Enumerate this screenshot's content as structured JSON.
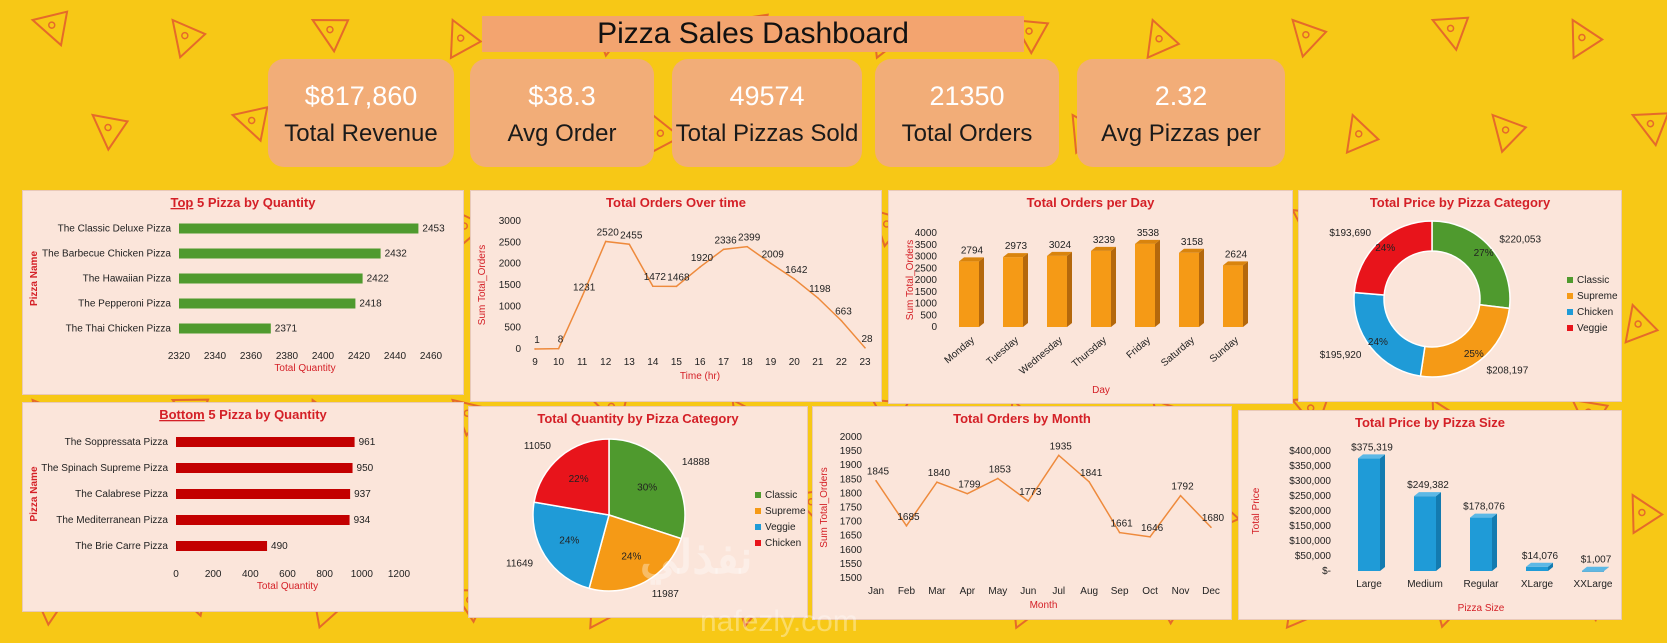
{
  "header": {
    "title": "Pizza Sales Dashboard"
  },
  "kpis": [
    {
      "value": "$817,860",
      "label": "Total Revenue"
    },
    {
      "value": "$38.3",
      "label": "Avg Order"
    },
    {
      "value": "49574",
      "label": "Total Pizzas Sold"
    },
    {
      "value": "21350",
      "label": "Total Orders"
    },
    {
      "value": "2.32",
      "label": "Avg Pizzas per"
    }
  ],
  "watermark": {
    "line1": "نفذلي",
    "line2": "nafezly.com"
  },
  "colors": {
    "green": "#4f9a2e",
    "red": "#c30000",
    "orange": "#f59a16",
    "blue": "#1f9bd7",
    "line": "#ee8a3c",
    "panel": "#fbe5da",
    "bg": "#f7c816",
    "title": "#d42027"
  },
  "chart_data": [
    {
      "id": "top5",
      "type": "bar",
      "orientation": "horizontal",
      "title_prefix": "Top",
      "title": " 5 Pizza by Quantity",
      "categories": [
        "The Classic Deluxe Pizza",
        "The Barbecue Chicken Pizza",
        "The Hawaiian Pizza",
        "The Pepperoni Pizza",
        "The Thai Chicken Pizza"
      ],
      "values": [
        2453,
        2432,
        2422,
        2418,
        2371
      ],
      "xlim": [
        2320,
        2460
      ],
      "xticks": [
        2320,
        2340,
        2360,
        2380,
        2400,
        2420,
        2440,
        2460
      ],
      "xlabel": "Total Quantity",
      "ylabel": "Pizza Name",
      "color": "#4f9a2e"
    },
    {
      "id": "bottom5",
      "type": "bar",
      "orientation": "horizontal",
      "title_prefix": "Bottom",
      "title": " 5 Pizza by Quantity",
      "categories": [
        "The Soppressata Pizza",
        "The Spinach Supreme Pizza",
        "The Calabrese Pizza",
        "The Mediterranean Pizza",
        "The Brie Carre Pizza"
      ],
      "values": [
        961,
        950,
        937,
        934,
        490
      ],
      "xlim": [
        0,
        1200
      ],
      "xticks": [
        0,
        200,
        400,
        600,
        800,
        1000,
        1200
      ],
      "xlabel": "Total Quantity",
      "ylabel": "Pizza Name",
      "color": "#c30000"
    },
    {
      "id": "hourly",
      "type": "line",
      "title": "Total Orders Over time",
      "x": [
        9,
        10,
        11,
        12,
        13,
        14,
        15,
        16,
        17,
        18,
        19,
        20,
        21,
        22,
        23
      ],
      "values": [
        1,
        8,
        1231,
        2520,
        2455,
        1472,
        1468,
        1920,
        2336,
        2399,
        2009,
        1642,
        1198,
        663,
        28
      ],
      "ylim": [
        0,
        3000
      ],
      "yticks": [
        0,
        500,
        1000,
        1500,
        2000,
        2500,
        3000
      ],
      "xlabel": "Time (hr)",
      "ylabel": "Sum Total_Orders",
      "color": "#ee8a3c"
    },
    {
      "id": "daily",
      "type": "bar",
      "title": "Total Orders per Day",
      "categories": [
        "Monday",
        "Tuesday",
        "Wednesday",
        "Thursday",
        "Friday",
        "Saturday",
        "Sunday"
      ],
      "values": [
        2794,
        2973,
        3024,
        3239,
        3538,
        3158,
        2624
      ],
      "ylim": [
        0,
        4000
      ],
      "yticks": [
        0,
        500,
        1000,
        1500,
        2000,
        2500,
        3000,
        3500,
        4000
      ],
      "xlabel": "Day",
      "ylabel": "Sum Total_Orders",
      "color": "#f59a16"
    },
    {
      "id": "price_category",
      "type": "pie",
      "style": "donut",
      "title": "Total Price by Pizza Category",
      "labels": [
        "Classic",
        "Supreme",
        "Chicken",
        "Veggie"
      ],
      "values": [
        220053,
        208197,
        195920,
        193690
      ],
      "value_labels": [
        "$220,053",
        "$208,197",
        "$195,920",
        "$193,690"
      ],
      "percent_labels": [
        "27%",
        "25%",
        "24%",
        "24%"
      ],
      "colors": [
        "#4f9a2e",
        "#f59a16",
        "#1f9bd7",
        "#e8141b"
      ],
      "legend": "right"
    },
    {
      "id": "qty_category",
      "type": "pie",
      "title": "Total Quantity  by Pizza Category",
      "labels": [
        "Classic",
        "Supreme",
        "Veggie",
        "Chicken"
      ],
      "values": [
        14888,
        11987,
        11649,
        11050
      ],
      "value_labels": [
        "14888",
        "11987",
        "11649",
        "11050"
      ],
      "percent_labels": [
        "30%",
        "24%",
        "24%",
        "22%"
      ],
      "colors": [
        "#4f9a2e",
        "#f59a16",
        "#1f9bd7",
        "#e8141b"
      ],
      "legend": "right"
    },
    {
      "id": "monthly",
      "type": "line",
      "title": "Total Orders by Month",
      "categories": [
        "Jan",
        "Feb",
        "Mar",
        "Apr",
        "May",
        "Jun",
        "Jul",
        "Aug",
        "Sep",
        "Oct",
        "Nov",
        "Dec"
      ],
      "values": [
        1845,
        1685,
        1840,
        1799,
        1853,
        1773,
        1935,
        1841,
        1661,
        1646,
        1792,
        1680
      ],
      "ylim": [
        1500,
        2000
      ],
      "yticks": [
        1500,
        1550,
        1600,
        1650,
        1700,
        1750,
        1800,
        1850,
        1900,
        1950,
        2000
      ],
      "xlabel": "Month",
      "ylabel": "Sum Total_Orders",
      "color": "#ee8a3c"
    },
    {
      "id": "price_size",
      "type": "bar",
      "title": "Total Price by Pizza Size",
      "categories": [
        "Large",
        "Medium",
        "Regular",
        "XLarge",
        "XXLarge"
      ],
      "values": [
        375319,
        249382,
        178076,
        14076,
        1007
      ],
      "value_labels": [
        "$375,319",
        "$249,382",
        "$178,076",
        "$14,076",
        "$1,007"
      ],
      "ylim": [
        0,
        400000
      ],
      "ytick_labels": [
        "$-",
        "$50,000",
        "$100,000",
        "$150,000",
        "$200,000",
        "$250,000",
        "$300,000",
        "$350,000",
        "$400,000"
      ],
      "xlabel": "Pizza Size",
      "ylabel": "Total Price",
      "color": "#1f9bd7"
    }
  ]
}
